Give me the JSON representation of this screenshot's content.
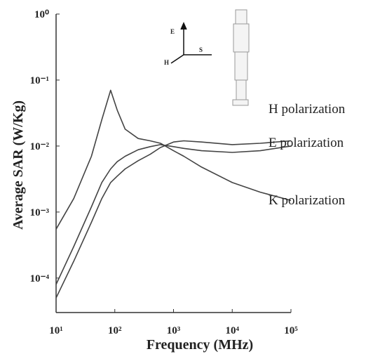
{
  "chart_data": {
    "type": "line",
    "x_label": "Frequency (MHz)",
    "y_label": "Average SAR (W/Kg)",
    "log_x": true,
    "log_y": true,
    "xlim": [
      10,
      100000
    ],
    "xticks": [
      {
        "value": 10,
        "label": "10¹"
      },
      {
        "value": 100,
        "label": "10²"
      },
      {
        "value": 1000,
        "label": "10³"
      },
      {
        "value": 10000,
        "label": "10⁴"
      },
      {
        "value": 100000,
        "label": "10⁵"
      }
    ],
    "ylim": [
      3e-05,
      1
    ],
    "yticks": [
      {
        "value": 0.0001,
        "label": "10⁻⁴"
      },
      {
        "value": 0.001,
        "label": "10⁻³"
      },
      {
        "value": 0.01,
        "label": "10⁻²"
      },
      {
        "value": 0.1,
        "label": "10⁻¹"
      },
      {
        "value": 1,
        "label": "10⁰"
      }
    ],
    "x": [
      10,
      20,
      40,
      60,
      85,
      110,
      150,
      250,
      400,
      600,
      1000,
      1500,
      3000,
      10000,
      30000,
      100000
    ],
    "series": [
      {
        "name": "H polarization",
        "color": "#444444",
        "values": [
          5e-05,
          0.00018,
          0.0007,
          0.0016,
          0.0028,
          0.0035,
          0.0045,
          0.006,
          0.0075,
          0.0095,
          0.0115,
          0.012,
          0.0115,
          0.0105,
          0.011,
          0.012
        ]
      },
      {
        "name": "E polarization",
        "color": "#444444",
        "values": [
          8e-05,
          0.0003,
          0.0012,
          0.0028,
          0.0045,
          0.0058,
          0.007,
          0.0088,
          0.0098,
          0.0105,
          0.0098,
          0.0092,
          0.0085,
          0.008,
          0.0085,
          0.01
        ]
      },
      {
        "name": "K polarization",
        "color": "#444444",
        "values": [
          0.00055,
          0.0016,
          0.007,
          0.025,
          0.07,
          0.035,
          0.018,
          0.013,
          0.012,
          0.011,
          0.0085,
          0.007,
          0.0048,
          0.0028,
          0.002,
          0.0015
        ]
      }
    ],
    "diagram_labels": [
      "E",
      "S",
      "H"
    ]
  }
}
